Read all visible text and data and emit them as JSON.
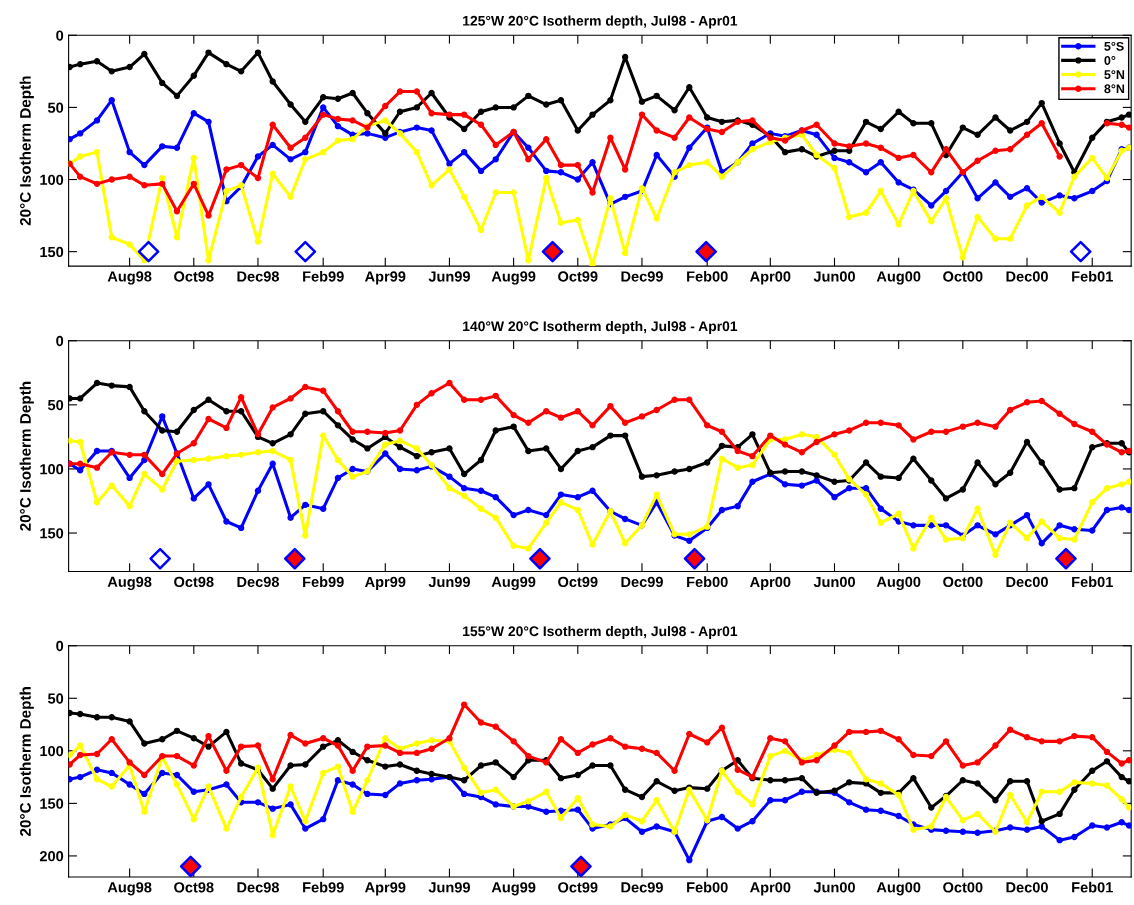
{
  "chart_data": [
    {
      "type": "line",
      "title": "125°W 20°C Isotherm depth, Jul98 - Apr01",
      "ylabel": "20°C Isotherm Depth",
      "marker": "circle",
      "legend": "top right",
      "grid": false,
      "xlim": [
        "1998-06-04",
        "2001-03-10"
      ],
      "ylim": [
        160,
        0
      ],
      "yticks": [
        0,
        50,
        100,
        150
      ],
      "xticks": [
        {
          "value": "1998-08-01",
          "label": "Aug98"
        },
        {
          "value": "1998-10-01",
          "label": "Oct98"
        },
        {
          "value": "1998-12-01",
          "label": "Dec98"
        },
        {
          "value": "1999-02-01",
          "label": "Feb99"
        },
        {
          "value": "1999-04-01",
          "label": "Apr99"
        },
        {
          "value": "1999-06-01",
          "label": "Jun99"
        },
        {
          "value": "1999-08-01",
          "label": "Aug99"
        },
        {
          "value": "1999-10-01",
          "label": "Oct99"
        },
        {
          "value": "1999-12-01",
          "label": "Dec99"
        },
        {
          "value": "2000-02-01",
          "label": "Feb00"
        },
        {
          "value": "2000-04-01",
          "label": "Apr00"
        },
        {
          "value": "2000-06-01",
          "label": "Jun00"
        },
        {
          "value": "2000-08-01",
          "label": "Aug00"
        },
        {
          "value": "2000-10-01",
          "label": "Oct00"
        },
        {
          "value": "2000-12-01",
          "label": "Dec00"
        },
        {
          "value": "2001-02-01",
          "label": "Feb01"
        }
      ],
      "x": [
        "1998-06-05",
        "1998-06-15",
        "1998-07-01",
        "1998-07-15",
        "1998-08-01",
        "1998-08-15",
        "1998-09-01",
        "1998-09-15",
        "1998-10-01",
        "1998-10-15",
        "1998-11-01",
        "1998-11-15",
        "1998-12-01",
        "1998-12-15",
        "1999-01-01",
        "1999-01-15",
        "1999-02-01",
        "1999-02-15",
        "1999-03-01",
        "1999-03-15",
        "1999-04-01",
        "1999-04-15",
        "1999-05-01",
        "1999-05-15",
        "1999-06-01",
        "1999-06-15",
        "1999-07-01",
        "1999-07-15",
        "1999-08-01",
        "1999-08-15",
        "1999-09-01",
        "1999-09-15",
        "1999-10-01",
        "1999-10-15",
        "1999-11-01",
        "1999-11-15",
        "1999-12-01",
        "1999-12-15",
        "2000-01-01",
        "2000-01-15",
        "2000-02-01",
        "2000-02-15",
        "2000-03-01",
        "2000-03-15",
        "2000-04-01",
        "2000-04-15",
        "2000-05-01",
        "2000-05-15",
        "2000-06-01",
        "2000-06-15",
        "2000-07-01",
        "2000-07-15",
        "2000-08-01",
        "2000-08-15",
        "2000-09-01",
        "2000-09-15",
        "2000-10-01",
        "2000-10-15",
        "2000-11-01",
        "2000-11-15",
        "2000-12-01",
        "2000-12-15",
        "2001-01-01",
        "2001-01-15",
        "2001-02-01",
        "2001-02-15",
        "2001-03-01",
        "2001-03-08"
      ],
      "series": [
        {
          "name": "5°S",
          "color": "#0000ff",
          "values": [
            72,
            68,
            59,
            45,
            81,
            90,
            77,
            78,
            54,
            60,
            115,
            105,
            84,
            76,
            86,
            81,
            50,
            63,
            69,
            68,
            71,
            67,
            64,
            66,
            89,
            81,
            94,
            86,
            67,
            78,
            94,
            95,
            100,
            88,
            117,
            112,
            108,
            83,
            98,
            78,
            64,
            95,
            88,
            75,
            68,
            70,
            66,
            69,
            85,
            88,
            95,
            88,
            102,
            107,
            118,
            108,
            95,
            113,
            102,
            112,
            106,
            116,
            111,
            113,
            108,
            101,
            79,
            78
          ]
        },
        {
          "name": "0°",
          "color": "#000000",
          "values": [
            22,
            20,
            18,
            25,
            22,
            13,
            33,
            42,
            28,
            12,
            20,
            25,
            12,
            32,
            48,
            60,
            43,
            44,
            40,
            54,
            68,
            53,
            50,
            40,
            57,
            65,
            53,
            50,
            50,
            42,
            48,
            45,
            66,
            55,
            45,
            15,
            46,
            42,
            52,
            36,
            57,
            60,
            59,
            62,
            70,
            81,
            79,
            84,
            80,
            80,
            60,
            65,
            53,
            61,
            61,
            83,
            64,
            69,
            57,
            66,
            60,
            47,
            75,
            95,
            71,
            60,
            57,
            55
          ]
        },
        {
          "name": "5°N",
          "color": "#ffff00",
          "values": [
            89,
            84,
            81,
            140,
            145,
            156,
            99,
            140,
            85,
            156,
            108,
            104,
            143,
            96,
            112,
            86,
            81,
            73,
            72,
            63,
            59,
            68,
            81,
            104,
            93,
            112,
            135,
            109,
            109,
            156,
            99,
            130,
            128,
            159,
            113,
            151,
            106,
            127,
            95,
            90,
            88,
            98,
            88,
            79,
            74,
            71,
            69,
            83,
            92,
            126,
            123,
            108,
            131,
            108,
            129,
            113,
            154,
            126,
            141,
            141,
            118,
            112,
            123,
            98,
            85,
            99,
            80,
            78
          ]
        },
        {
          "name": "8°N",
          "color": "#ff0000",
          "values": [
            89,
            98,
            103,
            100,
            98,
            104,
            103,
            122,
            103,
            125,
            93,
            90,
            99,
            62,
            78,
            71,
            55,
            58,
            59,
            64,
            49,
            39,
            39,
            54,
            55,
            55,
            62,
            76,
            67,
            86,
            72,
            90,
            90,
            109,
            71,
            93,
            55,
            66,
            71,
            57,
            65,
            67,
            60,
            59,
            71,
            73,
            66,
            62,
            75,
            77,
            75,
            78,
            85,
            83,
            95,
            79,
            95,
            87,
            80,
            79,
            69,
            61,
            84,
            null,
            null,
            61,
            62,
            64
          ]
        },
        {
          "type": "scatter",
          "marker": "diamond",
          "color": "#ffffff",
          "x": [
            "1998-08-19",
            "1999-01-15",
            "2001-01-21"
          ],
          "values": [
            150,
            150,
            150
          ]
        },
        {
          "type": "scatter",
          "marker": "diamond",
          "color": "#ff0000",
          "x": [
            "1999-09-07",
            "2000-01-31"
          ],
          "values": [
            150,
            150
          ]
        }
      ]
    },
    {
      "type": "line",
      "title": "140°W 20°C Isotherm depth, Jul98 - Apr01",
      "ylabel": "20°C Isotherm Depth",
      "marker": "circle",
      "grid": false,
      "xlim": [
        "1998-06-04",
        "2001-03-10"
      ],
      "ylim": [
        180,
        0
      ],
      "yticks": [
        0,
        50,
        100,
        150
      ],
      "xticks": [
        {
          "value": "1998-08-01",
          "label": "Aug98"
        },
        {
          "value": "1998-10-01",
          "label": "Oct98"
        },
        {
          "value": "1998-12-01",
          "label": "Dec98"
        },
        {
          "value": "1999-02-01",
          "label": "Feb99"
        },
        {
          "value": "1999-04-01",
          "label": "Apr99"
        },
        {
          "value": "1999-06-01",
          "label": "Jun99"
        },
        {
          "value": "1999-08-01",
          "label": "Aug99"
        },
        {
          "value": "1999-10-01",
          "label": "Oct99"
        },
        {
          "value": "1999-12-01",
          "label": "Dec99"
        },
        {
          "value": "2000-02-01",
          "label": "Feb00"
        },
        {
          "value": "2000-04-01",
          "label": "Apr00"
        },
        {
          "value": "2000-06-01",
          "label": "Jun00"
        },
        {
          "value": "2000-08-01",
          "label": "Aug00"
        },
        {
          "value": "2000-10-01",
          "label": "Oct00"
        },
        {
          "value": "2000-12-01",
          "label": "Dec00"
        },
        {
          "value": "2001-02-01",
          "label": "Feb01"
        }
      ],
      "x": [
        "1998-06-05",
        "1998-06-15",
        "1998-07-01",
        "1998-07-15",
        "1998-08-01",
        "1998-08-15",
        "1998-09-01",
        "1998-09-15",
        "1998-10-01",
        "1998-10-15",
        "1998-11-01",
        "1998-11-15",
        "1998-12-01",
        "1998-12-15",
        "1999-01-01",
        "1999-01-15",
        "1999-02-01",
        "1999-02-15",
        "1999-03-01",
        "1999-03-15",
        "1999-04-01",
        "1999-04-15",
        "1999-05-01",
        "1999-05-15",
        "1999-06-01",
        "1999-06-15",
        "1999-07-01",
        "1999-07-15",
        "1999-08-01",
        "1999-08-15",
        "1999-09-01",
        "1999-09-15",
        "1999-10-01",
        "1999-10-15",
        "1999-11-01",
        "1999-11-15",
        "1999-12-01",
        "1999-12-15",
        "2000-01-01",
        "2000-01-15",
        "2000-02-01",
        "2000-02-15",
        "2000-03-01",
        "2000-03-15",
        "2000-04-01",
        "2000-04-15",
        "2000-05-01",
        "2000-05-15",
        "2000-06-01",
        "2000-06-15",
        "2000-07-01",
        "2000-07-15",
        "2000-08-01",
        "2000-08-15",
        "2000-09-01",
        "2000-09-15",
        "2000-10-01",
        "2000-10-15",
        "2000-11-01",
        "2000-11-15",
        "2000-12-01",
        "2000-12-15",
        "2001-01-01",
        "2001-01-15",
        "2001-02-01",
        "2001-02-15",
        "2001-03-01",
        "2001-03-08"
      ],
      "series": [
        {
          "color": "#0000ff",
          "values": [
            96,
            101,
            86,
            86,
            107,
            93,
            59,
            88,
            123,
            112,
            141,
            146,
            117,
            96,
            138,
            128,
            131,
            107,
            100,
            102,
            88,
            100,
            101,
            98,
            106,
            115,
            117,
            122,
            136,
            132,
            136,
            120,
            122,
            117,
            133,
            139,
            144,
            126,
            152,
            156,
            146,
            132,
            129,
            110,
            104,
            112,
            113,
            109,
            122,
            115,
            115,
            131,
            141,
            144,
            144,
            144,
            152,
            144,
            151,
            144,
            136,
            158,
            144,
            147,
            148,
            132,
            130,
            132
          ]
        },
        {
          "color": "#000000",
          "values": [
            45,
            45,
            33,
            35,
            36,
            55,
            70,
            71,
            54,
            46,
            55,
            55,
            75,
            80,
            73,
            57,
            55,
            66,
            77,
            84,
            75,
            83,
            90,
            87,
            84,
            104,
            93,
            70,
            67,
            86,
            84,
            100,
            86,
            83,
            74,
            74,
            106,
            105,
            102,
            100,
            95,
            82,
            83,
            73,
            103,
            102,
            102,
            105,
            110,
            109,
            95,
            106,
            107,
            92,
            109,
            123,
            116,
            95,
            112,
            103,
            79,
            95,
            116,
            115,
            83,
            80,
            80,
            87
          ]
        },
        {
          "color": "#ffff00",
          "values": [
            78,
            79,
            126,
            113,
            129,
            104,
            116,
            94,
            93,
            92,
            90,
            89,
            87,
            86,
            93,
            152,
            74,
            93,
            106,
            102,
            81,
            78,
            84,
            97,
            115,
            121,
            131,
            138,
            160,
            162,
            142,
            126,
            132,
            159,
            133,
            158,
            144,
            120,
            151,
            151,
            145,
            92,
            99,
            97,
            77,
            77,
            73,
            75,
            89,
            108,
            120,
            142,
            135,
            162,
            138,
            155,
            154,
            131,
            167,
            142,
            154,
            141,
            154,
            155,
            126,
            115,
            112,
            110
          ]
        },
        {
          "color": "#ff0000",
          "values": [
            96,
            96,
            99,
            87,
            89,
            89,
            104,
            88,
            80,
            61,
            68,
            44,
            73,
            52,
            45,
            36,
            39,
            55,
            71,
            71,
            72,
            70,
            50,
            41,
            33,
            46,
            46,
            43,
            58,
            64,
            55,
            60,
            55,
            66,
            51,
            64,
            59,
            54,
            46,
            46,
            66,
            71,
            86,
            90,
            74,
            81,
            87,
            79,
            73,
            70,
            64,
            64,
            66,
            77,
            71,
            71,
            67,
            64,
            67,
            54,
            48,
            47,
            57,
            65,
            71,
            81,
            87,
            86
          ]
        },
        {
          "type": "scatter",
          "marker": "diamond",
          "color": "#ffffff",
          "x": [
            "1998-08-30"
          ],
          "values": [
            170
          ]
        },
        {
          "type": "scatter",
          "marker": "diamond",
          "color": "#ff0000",
          "x": [
            "1999-01-05",
            "1999-08-26",
            "2000-01-20",
            "2001-01-07"
          ],
          "values": [
            170,
            170,
            170,
            170
          ]
        }
      ]
    },
    {
      "type": "line",
      "title": "155°W 20°C Isotherm depth, Jul98 - Apr01",
      "ylabel": "20°C Isotherm Depth",
      "marker": "circle",
      "grid": false,
      "xlim": [
        "1998-06-04",
        "2001-03-10"
      ],
      "ylim": [
        220,
        0
      ],
      "yticks": [
        0,
        50,
        100,
        150,
        200
      ],
      "xticks": [
        {
          "value": "1998-08-01",
          "label": "Aug98"
        },
        {
          "value": "1998-10-01",
          "label": "Oct98"
        },
        {
          "value": "1998-12-01",
          "label": "Dec98"
        },
        {
          "value": "1999-02-01",
          "label": "Feb99"
        },
        {
          "value": "1999-04-01",
          "label": "Apr99"
        },
        {
          "value": "1999-06-01",
          "label": "Jun99"
        },
        {
          "value": "1999-08-01",
          "label": "Aug99"
        },
        {
          "value": "1999-10-01",
          "label": "Oct99"
        },
        {
          "value": "1999-12-01",
          "label": "Dec99"
        },
        {
          "value": "2000-02-01",
          "label": "Feb00"
        },
        {
          "value": "2000-04-01",
          "label": "Apr00"
        },
        {
          "value": "2000-06-01",
          "label": "Jun00"
        },
        {
          "value": "2000-08-01",
          "label": "Aug00"
        },
        {
          "value": "2000-10-01",
          "label": "Oct00"
        },
        {
          "value": "2000-12-01",
          "label": "Dec00"
        },
        {
          "value": "2001-02-01",
          "label": "Feb01"
        }
      ],
      "x": [
        "1998-06-05",
        "1998-06-15",
        "1998-07-01",
        "1998-07-15",
        "1998-08-01",
        "1998-08-15",
        "1998-09-01",
        "1998-09-15",
        "1998-10-01",
        "1998-10-15",
        "1998-11-01",
        "1998-11-15",
        "1998-12-01",
        "1998-12-15",
        "1999-01-01",
        "1999-01-15",
        "1999-02-01",
        "1999-02-15",
        "1999-03-01",
        "1999-03-15",
        "1999-04-01",
        "1999-04-15",
        "1999-05-01",
        "1999-05-15",
        "1999-06-01",
        "1999-06-15",
        "1999-07-01",
        "1999-07-15",
        "1999-08-01",
        "1999-08-15",
        "1999-09-01",
        "1999-09-15",
        "1999-10-01",
        "1999-10-15",
        "1999-11-01",
        "1999-11-15",
        "1999-12-01",
        "1999-12-15",
        "2000-01-01",
        "2000-01-15",
        "2000-02-01",
        "2000-02-15",
        "2000-03-01",
        "2000-03-15",
        "2000-04-01",
        "2000-04-15",
        "2000-05-01",
        "2000-05-15",
        "2000-06-01",
        "2000-06-15",
        "2000-07-01",
        "2000-07-15",
        "2000-08-01",
        "2000-08-15",
        "2000-09-01",
        "2000-09-15",
        "2000-10-01",
        "2000-10-15",
        "2000-11-01",
        "2000-11-15",
        "2000-12-01",
        "2000-12-15",
        "2001-01-01",
        "2001-01-15",
        "2001-02-01",
        "2001-02-15",
        "2001-03-01",
        "2001-03-08"
      ],
      "series": [
        {
          "color": "#0000ff",
          "values": [
            127,
            125,
            118,
            121,
            132,
            141,
            121,
            123,
            139,
            137,
            132,
            149,
            149,
            155,
            151,
            174,
            165,
            128,
            132,
            141,
            142,
            131,
            128,
            127,
            125,
            141,
            144,
            151,
            153,
            153,
            158,
            157,
            156,
            174,
            170,
            164,
            177,
            172,
            177,
            204,
            167,
            163,
            174,
            167,
            147,
            147,
            139,
            139,
            140,
            149,
            156,
            157,
            162,
            170,
            175,
            176,
            177,
            178,
            176,
            173,
            175,
            172,
            185,
            182,
            171,
            173,
            168,
            171
          ]
        },
        {
          "color": "#000000",
          "values": [
            64,
            65,
            68,
            68,
            72,
            93,
            89,
            81,
            88,
            96,
            82,
            112,
            118,
            136,
            114,
            113,
            96,
            90,
            101,
            109,
            115,
            113,
            119,
            122,
            125,
            128,
            114,
            111,
            125,
            109,
            109,
            126,
            123,
            114,
            114,
            137,
            144,
            129,
            138,
            135,
            136,
            119,
            109,
            126,
            128,
            128,
            126,
            140,
            138,
            130,
            131,
            140,
            140,
            126,
            154,
            143,
            128,
            131,
            147,
            129,
            129,
            167,
            160,
            137,
            119,
            110,
            125,
            129
          ]
        },
        {
          "color": "#ffff00",
          "values": [
            104,
            95,
            127,
            134,
            114,
            158,
            106,
            132,
            165,
            134,
            174,
            144,
            116,
            180,
            134,
            167,
            121,
            115,
            158,
            128,
            88,
            98,
            93,
            90,
            91,
            116,
            140,
            137,
            153,
            148,
            139,
            164,
            145,
            170,
            172,
            161,
            167,
            147,
            177,
            137,
            166,
            119,
            139,
            151,
            105,
            100,
            109,
            104,
            99,
            102,
            127,
            131,
            142,
            175,
            172,
            144,
            166,
            160,
            177,
            142,
            168,
            139,
            139,
            130,
            131,
            133,
            146,
            154
          ]
        },
        {
          "color": "#ff0000",
          "values": [
            113,
            104,
            103,
            89,
            111,
            123,
            105,
            105,
            114,
            86,
            119,
            96,
            95,
            127,
            85,
            93,
            88,
            95,
            119,
            96,
            95,
            102,
            102,
            98,
            88,
            56,
            73,
            77,
            91,
            105,
            111,
            89,
            102,
            94,
            88,
            96,
            98,
            102,
            119,
            84,
            92,
            78,
            118,
            125,
            88,
            91,
            111,
            109,
            95,
            82,
            82,
            81,
            89,
            104,
            105,
            91,
            114,
            111,
            95,
            80,
            87,
            91,
            91,
            86,
            87,
            101,
            112,
            109
          ]
        },
        {
          "type": "scatter",
          "marker": "diamond",
          "color": "#ff0000",
          "x": [
            "1998-09-28",
            "1999-10-04"
          ],
          "values": [
            210,
            210
          ]
        }
      ]
    }
  ]
}
